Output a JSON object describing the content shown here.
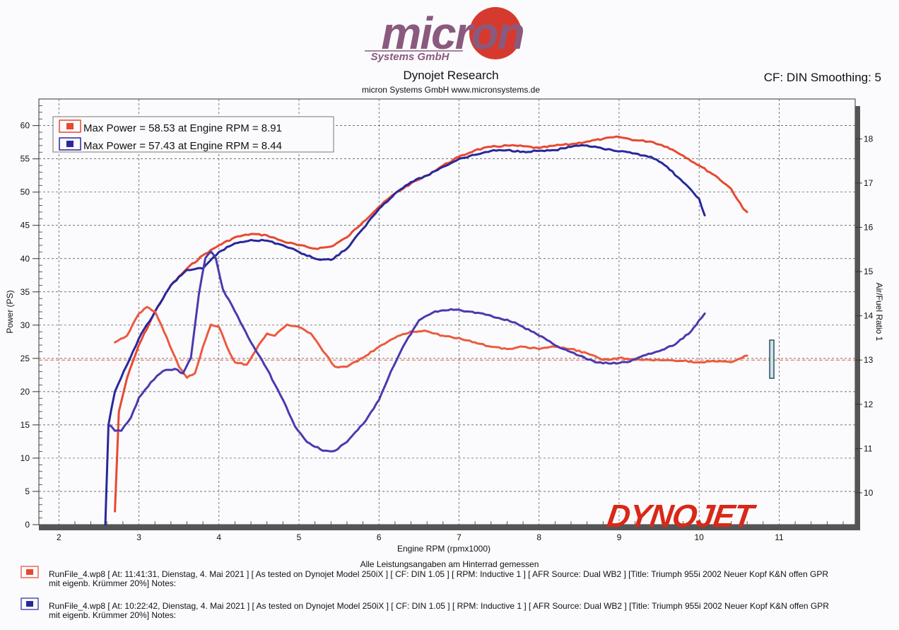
{
  "brand": {
    "logo_text": "micron",
    "logo_sub": "Systems GmbH",
    "title": "Dynojet Research",
    "subtitle": "micron Systems GmbH  www.micronsystems.de",
    "settings": "CF: DIN Smoothing: 5",
    "dynojet_logo": "DYNOJET"
  },
  "colors": {
    "red": "#e84830",
    "blue": "#28289a",
    "red_afr": "#ec5a40",
    "blue_afr": "#4a3aae",
    "grid": "#444444"
  },
  "legend": {
    "entries": [
      "Max Power = 58.53 at Engine RPM = 8.91",
      "Max Power = 57.43 at Engine RPM = 8.44"
    ]
  },
  "note": "Alle Leistungsangaben am Hinterrad gemessen",
  "runs": [
    {
      "line1": "RunFile_4.wp8 [ At: 11:41:31, Dienstag, 4. Mai 2021 ] [ As tested on Dynojet Model 250iX ] [ CF: DIN 1.05 ] [ RPM: Inductive 1 ] [ AFR Source: Dual WB2 ] [Title: Triumph 955i 2002 Neuer Kopf K&N offen GPR",
      "line2": "mit eigenb. Krümmer 20%]  Notes:"
    },
    {
      "line1": "RunFile_4.wp8 [ At: 10:22:42, Dienstag, 4. Mai 2021 ] [ As tested on Dynojet Model 250iX ] [ CF: DIN 1.05 ] [ RPM: Inductive 1 ] [ AFR Source: Dual WB2 ] [Title: Triumph 955i 2002 Neuer Kopf K&N offen GPR",
      "line2": "mit eigenb. Krümmer 20%]  Notes:"
    }
  ],
  "chart_data": {
    "type": "line",
    "xlabel": "Engine RPM (rpmx1000)",
    "ylabel": "Power (PS)",
    "y2label": "Air/Fuel Ratio 1",
    "xlim": [
      1.75,
      11.95
    ],
    "ylim": [
      0,
      64
    ],
    "y2lim": [
      9.28,
      18.9
    ],
    "x_ticks": [
      2,
      3,
      4,
      5,
      6,
      7,
      8,
      9,
      10,
      11
    ],
    "y_ticks": [
      0,
      5,
      10,
      15,
      20,
      25,
      30,
      35,
      40,
      45,
      50,
      55,
      60
    ],
    "y2_ticks": [
      10,
      11,
      12,
      13,
      14,
      15,
      16,
      17,
      18
    ],
    "afr_reference": 13.0,
    "grid": true,
    "legend_position": "top-left",
    "series": [
      {
        "axis": "power",
        "color": "#e84830",
        "x": [
          2.7,
          2.75,
          2.85,
          3.0,
          3.2,
          3.4,
          3.6,
          3.8,
          4.0,
          4.2,
          4.4,
          4.6,
          4.8,
          5.0,
          5.2,
          5.4,
          5.6,
          5.8,
          6.0,
          6.2,
          6.4,
          6.6,
          6.8,
          7.0,
          7.2,
          7.4,
          7.6,
          7.8,
          8.0,
          8.2,
          8.4,
          8.6,
          8.8,
          9.0,
          9.2,
          9.4,
          9.6,
          9.8,
          10.0,
          10.2,
          10.4,
          10.55,
          10.6
        ],
        "y": [
          2,
          17,
          22,
          27,
          32,
          36,
          38.5,
          40.5,
          42,
          43.2,
          43.7,
          43.5,
          42.6,
          42,
          41.5,
          41.8,
          43.2,
          45.5,
          47.8,
          49.8,
          51.3,
          52.5,
          54,
          55.3,
          56.3,
          56.8,
          57,
          56.9,
          56.6,
          57,
          57.2,
          57.6,
          58,
          58.3,
          57.8,
          57.6,
          56.8,
          55.5,
          54,
          52.5,
          50.5,
          47.5,
          47
        ]
      },
      {
        "axis": "power",
        "color": "#28289a",
        "x": [
          2.58,
          2.62,
          2.7,
          2.85,
          3.0,
          3.2,
          3.4,
          3.6,
          3.8,
          4.0,
          4.2,
          4.4,
          4.6,
          4.8,
          5.0,
          5.2,
          5.4,
          5.6,
          5.8,
          6.0,
          6.2,
          6.4,
          6.6,
          6.8,
          7.0,
          7.2,
          7.4,
          7.6,
          7.8,
          8.0,
          8.2,
          8.4,
          8.6,
          8.8,
          9.0,
          9.2,
          9.4,
          9.6,
          9.8,
          10.0,
          10.07
        ],
        "y": [
          0,
          15,
          20,
          24,
          28,
          32,
          36,
          38.3,
          38.5,
          41,
          42.3,
          42.8,
          42.7,
          42,
          41,
          40,
          39.8,
          41.5,
          44.5,
          47.5,
          49.8,
          51.5,
          52.5,
          53.8,
          55,
          55.6,
          56.2,
          56.3,
          56.1,
          56.2,
          56.3,
          56.8,
          57,
          56.5,
          56.1,
          55.8,
          55.3,
          53.8,
          51.5,
          49,
          46.5
        ]
      },
      {
        "axis": "afr",
        "color": "#ec5a40",
        "x": [
          2.7,
          2.85,
          3.0,
          3.1,
          3.2,
          3.35,
          3.5,
          3.6,
          3.7,
          3.8,
          3.9,
          4.0,
          4.1,
          4.2,
          4.35,
          4.5,
          4.6,
          4.7,
          4.85,
          5.0,
          5.15,
          5.3,
          5.45,
          5.6,
          5.8,
          6.0,
          6.2,
          6.4,
          6.6,
          6.8,
          7.0,
          7.2,
          7.4,
          7.6,
          7.8,
          8.0,
          8.2,
          8.4,
          8.6,
          8.8,
          9.0,
          9.2,
          9.4,
          9.6,
          9.8,
          10.0,
          10.2,
          10.4,
          10.6
        ],
        "y": [
          13.4,
          13.55,
          14.05,
          14.2,
          14.1,
          13.5,
          12.85,
          12.6,
          12.7,
          13.3,
          13.8,
          13.75,
          13.3,
          12.95,
          12.9,
          13.35,
          13.6,
          13.55,
          13.8,
          13.75,
          13.6,
          13.2,
          12.85,
          12.85,
          13.05,
          13.3,
          13.5,
          13.65,
          13.65,
          13.55,
          13.5,
          13.4,
          13.3,
          13.25,
          13.3,
          13.25,
          13.3,
          13.25,
          13.15,
          13.0,
          13.05,
          13.0,
          13.0,
          13.0,
          12.98,
          12.95,
          12.97,
          12.95,
          13.1
        ]
      },
      {
        "axis": "afr",
        "color": "#4a3aae",
        "x": [
          2.62,
          2.7,
          2.78,
          2.9,
          3.0,
          3.15,
          3.3,
          3.45,
          3.55,
          3.65,
          3.75,
          3.83,
          3.9,
          3.96,
          4.05,
          4.2,
          4.4,
          4.6,
          4.8,
          4.95,
          5.1,
          5.3,
          5.45,
          5.6,
          5.8,
          6.0,
          6.15,
          6.3,
          6.5,
          6.7,
          6.9,
          7.1,
          7.3,
          7.5,
          7.7,
          7.9,
          8.1,
          8.3,
          8.5,
          8.7,
          8.9,
          9.1,
          9.3,
          9.5,
          9.7,
          9.9,
          10.0,
          10.07
        ],
        "y": [
          11.55,
          11.4,
          11.4,
          11.7,
          12.15,
          12.5,
          12.75,
          12.8,
          12.7,
          13.05,
          14.5,
          15.3,
          15.45,
          15.3,
          14.6,
          14.1,
          13.4,
          12.8,
          12.1,
          11.5,
          11.15,
          10.95,
          10.95,
          11.15,
          11.55,
          12.1,
          12.75,
          13.3,
          13.9,
          14.1,
          14.15,
          14.1,
          14.05,
          13.95,
          13.85,
          13.65,
          13.45,
          13.25,
          13.1,
          12.95,
          12.92,
          12.95,
          13.1,
          13.2,
          13.35,
          13.65,
          13.9,
          14.05
        ]
      }
    ]
  }
}
